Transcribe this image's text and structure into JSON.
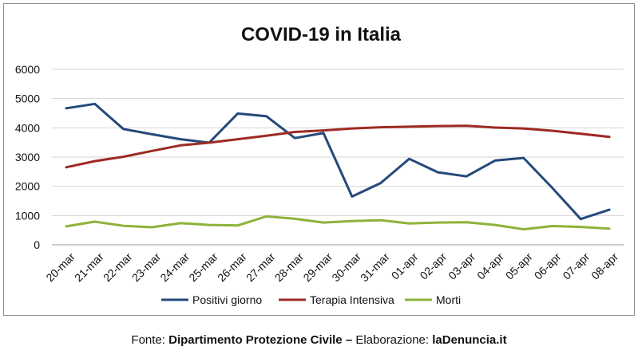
{
  "chart_data": {
    "type": "line",
    "title": "COVID-19 in Italia",
    "xlabel": "",
    "ylabel": "",
    "ylim": [
      0,
      6000
    ],
    "yticks": [
      0,
      1000,
      2000,
      3000,
      4000,
      5000,
      6000
    ],
    "grid": true,
    "legend": "bottom",
    "categories": [
      "20-mar",
      "21-mar",
      "22-mar",
      "23-mar",
      "24-mar",
      "25-mar",
      "26-mar",
      "27-mar",
      "28-mar",
      "29-mar",
      "30-mar",
      "31-mar",
      "01-apr",
      "02-apr",
      "03-apr",
      "04-apr",
      "05-apr",
      "06-apr",
      "07-apr",
      "08-apr"
    ],
    "series": [
      {
        "name": "Positivi giorno",
        "color": "#24497a",
        "values": [
          4670,
          4820,
          3960,
          3780,
          3610,
          3490,
          4490,
          4400,
          3650,
          3820,
          1650,
          2110,
          2940,
          2480,
          2340,
          2880,
          2970,
          1950,
          880,
          1200
        ]
      },
      {
        "name": "Terapia Intensiva",
        "color": "#9e2a22",
        "values": [
          2650,
          2860,
          3010,
          3210,
          3400,
          3490,
          3610,
          3730,
          3860,
          3910,
          3980,
          4020,
          4040,
          4060,
          4070,
          4010,
          3980,
          3900,
          3800,
          3690
        ]
      },
      {
        "name": "Morti",
        "color": "#8db33a",
        "values": [
          630,
          790,
          650,
          600,
          740,
          680,
          660,
          970,
          890,
          760,
          810,
          840,
          730,
          760,
          770,
          680,
          530,
          640,
          610,
          550
        ]
      }
    ]
  },
  "source": {
    "prefix": "Fonte: ",
    "org": "Dipartimento Protezione Civile –",
    "middle": " Elaborazione: ",
    "site": "laDenuncia.it"
  }
}
